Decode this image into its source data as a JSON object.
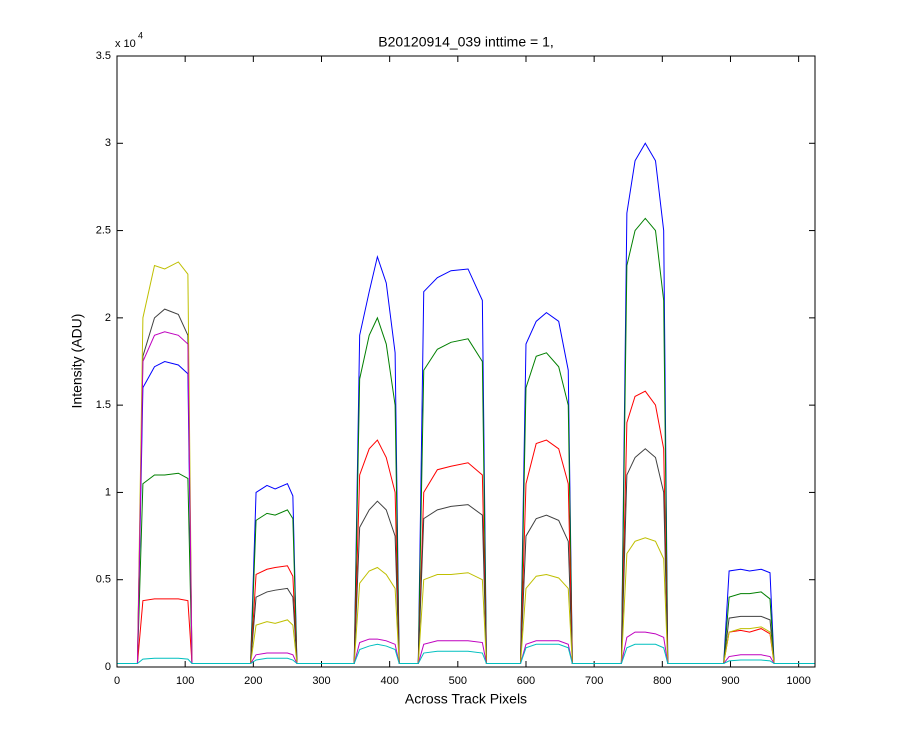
{
  "chart_data": {
    "type": "line",
    "title": "B20120914_039 inttime = 1,",
    "x_label": "Across Track Pixels",
    "y_label": "Intensity (ADU)",
    "y_multiplier": {
      "base": "x 10",
      "exponent": "4"
    },
    "xlim": [
      0,
      1024
    ],
    "ylim": [
      0,
      35000
    ],
    "xticks": [
      0,
      100,
      200,
      300,
      400,
      500,
      600,
      700,
      800,
      900,
      1000
    ],
    "yticks": [
      0,
      {
        "value": 5000,
        "label": "0.5"
      },
      {
        "value": 10000,
        "label": "1"
      },
      {
        "value": 15000,
        "label": "1.5"
      },
      {
        "value": 20000,
        "label": "2"
      },
      {
        "value": 25000,
        "label": "2.5"
      },
      {
        "value": 30000,
        "label": "3"
      },
      {
        "value": 35000,
        "label": "3.5"
      }
    ],
    "grid": false,
    "x": [
      0,
      30,
      38,
      55,
      70,
      90,
      104,
      110,
      196,
      204,
      220,
      232,
      250,
      258,
      264,
      348,
      356,
      370,
      382,
      395,
      408,
      414,
      442,
      450,
      470,
      490,
      515,
      536,
      542,
      592,
      600,
      615,
      630,
      648,
      662,
      668,
      740,
      748,
      760,
      775,
      790,
      802,
      808,
      890,
      898,
      915,
      928,
      945,
      958,
      964,
      1024
    ],
    "series": [
      {
        "color": "#0000ff",
        "values": [
          200,
          200,
          16000,
          17200,
          17500,
          17300,
          16800,
          200,
          200,
          10000,
          10400,
          10200,
          10500,
          9800,
          200,
          200,
          19000,
          21500,
          23500,
          22000,
          18000,
          200,
          200,
          21500,
          22300,
          22700,
          22800,
          21000,
          200,
          200,
          18500,
          19800,
          20300,
          19800,
          17000,
          200,
          200,
          26000,
          29000,
          30000,
          29000,
          25000,
          200,
          200,
          5500,
          5600,
          5500,
          5600,
          5400,
          200,
          200
        ]
      },
      {
        "color": "#007f00",
        "values": [
          200,
          200,
          10500,
          11000,
          11000,
          11100,
          10800,
          200,
          200,
          8400,
          8800,
          8700,
          9000,
          8500,
          200,
          200,
          16500,
          19000,
          20000,
          18500,
          15000,
          200,
          200,
          17000,
          18200,
          18600,
          18800,
          17500,
          200,
          200,
          16000,
          17800,
          18000,
          17200,
          15000,
          200,
          200,
          23000,
          25000,
          25700,
          25000,
          21000,
          200,
          200,
          4000,
          4200,
          4200,
          4300,
          3900,
          200,
          200
        ]
      },
      {
        "color": "#ff0000",
        "values": [
          200,
          200,
          3800,
          3900,
          3900,
          3900,
          3800,
          200,
          200,
          5300,
          5600,
          5700,
          5800,
          5200,
          200,
          200,
          11000,
          12500,
          13000,
          12000,
          10000,
          200,
          200,
          10000,
          11300,
          11500,
          11700,
          11000,
          200,
          200,
          10500,
          12800,
          13000,
          12500,
          10500,
          200,
          200,
          14000,
          15500,
          15800,
          15000,
          12500,
          200,
          200,
          2000,
          2100,
          2000,
          2200,
          1900,
          200,
          200
        ]
      },
      {
        "color": "#404040",
        "values": [
          200,
          200,
          17800,
          20000,
          20500,
          20200,
          19000,
          200,
          200,
          4000,
          4300,
          4400,
          4500,
          4000,
          200,
          200,
          8000,
          9000,
          9500,
          9000,
          7500,
          200,
          200,
          8500,
          9000,
          9200,
          9300,
          8700,
          200,
          200,
          7500,
          8500,
          8700,
          8400,
          7200,
          200,
          200,
          11000,
          12000,
          12500,
          12000,
          10000,
          200,
          200,
          2800,
          2900,
          2900,
          2900,
          2700,
          200,
          200
        ]
      },
      {
        "color": "#bfbf00",
        "values": [
          200,
          200,
          20000,
          23000,
          22800,
          23200,
          22500,
          200,
          200,
          2400,
          2600,
          2500,
          2700,
          2400,
          200,
          200,
          4800,
          5500,
          5700,
          5300,
          4500,
          200,
          200,
          5000,
          5300,
          5300,
          5400,
          5000,
          200,
          200,
          4500,
          5200,
          5300,
          5100,
          4500,
          200,
          200,
          6500,
          7200,
          7400,
          7200,
          6200,
          200,
          200,
          2000,
          2200,
          2200,
          2300,
          2000,
          200,
          200
        ]
      },
      {
        "color": "#bf00bf",
        "values": [
          200,
          200,
          17500,
          19000,
          19200,
          19000,
          18500,
          200,
          200,
          700,
          800,
          800,
          800,
          700,
          200,
          200,
          1400,
          1600,
          1600,
          1500,
          1300,
          200,
          200,
          1300,
          1500,
          1500,
          1500,
          1400,
          200,
          200,
          1300,
          1500,
          1500,
          1500,
          1300,
          200,
          200,
          1700,
          2000,
          2000,
          1900,
          1700,
          200,
          200,
          600,
          700,
          700,
          700,
          600,
          200,
          200
        ]
      },
      {
        "color": "#00bfbf",
        "values": [
          200,
          200,
          450,
          500,
          500,
          500,
          450,
          200,
          200,
          400,
          500,
          500,
          500,
          400,
          200,
          200,
          1000,
          1200,
          1300,
          1200,
          1000,
          200,
          200,
          800,
          900,
          900,
          900,
          800,
          200,
          200,
          1100,
          1300,
          1300,
          1300,
          1100,
          200,
          200,
          1100,
          1300,
          1300,
          1300,
          1100,
          200,
          200,
          350,
          400,
          400,
          400,
          350,
          200,
          200
        ]
      }
    ]
  }
}
